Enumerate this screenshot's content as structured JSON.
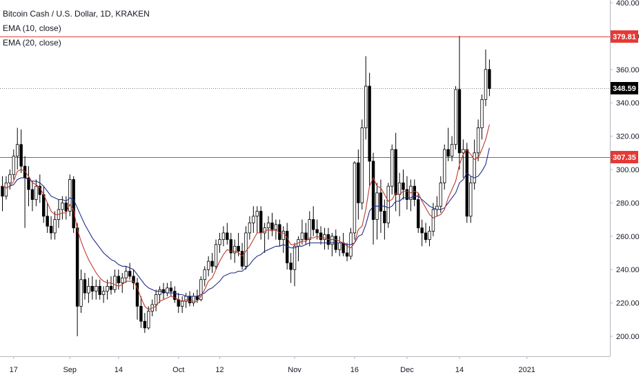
{
  "legend": {
    "symbol": "Bitcoin Cash / U.S. Dollar, 1D, KRAKEN",
    "ema_short": "EMA (10, close)",
    "ema_long": "EMA (20, close)"
  },
  "colors": {
    "bull_fill": "#ffffff",
    "bear_fill": "#000000",
    "wick": "#000000",
    "ema_short": "#c0392b",
    "ema_long": "#1f2a8c",
    "level_line": "#e53935",
    "price_tag": "#000000",
    "level_tag": "#e53935"
  },
  "chart_data": {
    "type": "candlestick",
    "title": "Bitcoin Cash / U.S. Dollar, 1D, KRAKEN",
    "ylim": [
      185,
      405
    ],
    "y_ticks": [
      200,
      220,
      240,
      260,
      280,
      300,
      320,
      340,
      360,
      380,
      400
    ],
    "y_tick_labels": [
      "200.00",
      "220.00",
      "240.00",
      "260.00",
      "280.00",
      "300.00",
      "320.00",
      "340.00",
      "360.00",
      "380.00",
      "400.00"
    ],
    "x_ticks": [
      {
        "index": 3,
        "label": "17"
      },
      {
        "index": 18,
        "label": "Sep"
      },
      {
        "index": 31,
        "label": "14"
      },
      {
        "index": 47,
        "label": "Oct"
      },
      {
        "index": 58,
        "label": "12"
      },
      {
        "index": 78,
        "label": "Nov"
      },
      {
        "index": 94,
        "label": "16"
      },
      {
        "index": 108,
        "label": "Dec"
      },
      {
        "index": 122,
        "label": "14"
      },
      {
        "index": 140,
        "label": "2021"
      }
    ],
    "candles": [
      {
        "o": 290,
        "h": 296,
        "l": 275,
        "c": 284
      },
      {
        "o": 284,
        "h": 296,
        "l": 282,
        "c": 292
      },
      {
        "o": 292,
        "h": 300,
        "l": 288,
        "c": 297
      },
      {
        "o": 297,
        "h": 312,
        "l": 294,
        "c": 308
      },
      {
        "o": 308,
        "h": 325,
        "l": 300,
        "c": 315
      },
      {
        "o": 315,
        "h": 324,
        "l": 298,
        "c": 302
      },
      {
        "o": 302,
        "h": 308,
        "l": 265,
        "c": 295
      },
      {
        "o": 295,
        "h": 302,
        "l": 278,
        "c": 288
      },
      {
        "o": 288,
        "h": 293,
        "l": 275,
        "c": 282
      },
      {
        "o": 282,
        "h": 294,
        "l": 278,
        "c": 290
      },
      {
        "o": 290,
        "h": 297,
        "l": 280,
        "c": 285
      },
      {
        "o": 285,
        "h": 290,
        "l": 268,
        "c": 272
      },
      {
        "o": 272,
        "h": 280,
        "l": 262,
        "c": 266
      },
      {
        "o": 266,
        "h": 272,
        "l": 258,
        "c": 262
      },
      {
        "o": 262,
        "h": 275,
        "l": 258,
        "c": 270
      },
      {
        "o": 270,
        "h": 282,
        "l": 265,
        "c": 276
      },
      {
        "o": 276,
        "h": 284,
        "l": 270,
        "c": 280
      },
      {
        "o": 280,
        "h": 284,
        "l": 270,
        "c": 275
      },
      {
        "o": 275,
        "h": 297,
        "l": 272,
        "c": 294
      },
      {
        "o": 294,
        "h": 296,
        "l": 262,
        "c": 265
      },
      {
        "o": 265,
        "h": 268,
        "l": 200,
        "c": 218
      },
      {
        "o": 218,
        "h": 240,
        "l": 214,
        "c": 234
      },
      {
        "o": 234,
        "h": 238,
        "l": 222,
        "c": 226
      },
      {
        "o": 226,
        "h": 235,
        "l": 220,
        "c": 230
      },
      {
        "o": 230,
        "h": 236,
        "l": 222,
        "c": 227
      },
      {
        "o": 227,
        "h": 234,
        "l": 222,
        "c": 230
      },
      {
        "o": 230,
        "h": 234,
        "l": 222,
        "c": 225
      },
      {
        "o": 225,
        "h": 230,
        "l": 220,
        "c": 227
      },
      {
        "o": 227,
        "h": 234,
        "l": 222,
        "c": 230
      },
      {
        "o": 230,
        "h": 236,
        "l": 225,
        "c": 228
      },
      {
        "o": 228,
        "h": 240,
        "l": 226,
        "c": 236
      },
      {
        "o": 236,
        "h": 240,
        "l": 228,
        "c": 232
      },
      {
        "o": 232,
        "h": 238,
        "l": 226,
        "c": 235
      },
      {
        "o": 235,
        "h": 242,
        "l": 232,
        "c": 239
      },
      {
        "o": 239,
        "h": 244,
        "l": 234,
        "c": 236
      },
      {
        "o": 236,
        "h": 240,
        "l": 228,
        "c": 232
      },
      {
        "o": 232,
        "h": 235,
        "l": 210,
        "c": 218
      },
      {
        "o": 218,
        "h": 224,
        "l": 205,
        "c": 209
      },
      {
        "o": 209,
        "h": 214,
        "l": 202,
        "c": 205
      },
      {
        "o": 205,
        "h": 218,
        "l": 204,
        "c": 215
      },
      {
        "o": 215,
        "h": 222,
        "l": 212,
        "c": 219
      },
      {
        "o": 219,
        "h": 228,
        "l": 215,
        "c": 225
      },
      {
        "o": 225,
        "h": 230,
        "l": 220,
        "c": 228
      },
      {
        "o": 228,
        "h": 232,
        "l": 222,
        "c": 226
      },
      {
        "o": 226,
        "h": 232,
        "l": 224,
        "c": 229
      },
      {
        "o": 229,
        "h": 233,
        "l": 224,
        "c": 227
      },
      {
        "o": 227,
        "h": 230,
        "l": 220,
        "c": 222
      },
      {
        "o": 222,
        "h": 226,
        "l": 214,
        "c": 218
      },
      {
        "o": 218,
        "h": 224,
        "l": 214,
        "c": 221
      },
      {
        "o": 221,
        "h": 226,
        "l": 217,
        "c": 224
      },
      {
        "o": 224,
        "h": 227,
        "l": 218,
        "c": 220
      },
      {
        "o": 220,
        "h": 226,
        "l": 218,
        "c": 224
      },
      {
        "o": 224,
        "h": 228,
        "l": 220,
        "c": 222
      },
      {
        "o": 222,
        "h": 236,
        "l": 221,
        "c": 234
      },
      {
        "o": 234,
        "h": 242,
        "l": 230,
        "c": 240
      },
      {
        "o": 240,
        "h": 248,
        "l": 236,
        "c": 245
      },
      {
        "o": 245,
        "h": 250,
        "l": 238,
        "c": 242
      },
      {
        "o": 242,
        "h": 258,
        "l": 240,
        "c": 255
      },
      {
        "o": 255,
        "h": 262,
        "l": 250,
        "c": 258
      },
      {
        "o": 258,
        "h": 266,
        "l": 254,
        "c": 262
      },
      {
        "o": 262,
        "h": 268,
        "l": 255,
        "c": 258
      },
      {
        "o": 258,
        "h": 262,
        "l": 246,
        "c": 250
      },
      {
        "o": 250,
        "h": 258,
        "l": 244,
        "c": 254
      },
      {
        "o": 254,
        "h": 262,
        "l": 248,
        "c": 251
      },
      {
        "o": 251,
        "h": 256,
        "l": 240,
        "c": 242
      },
      {
        "o": 242,
        "h": 266,
        "l": 240,
        "c": 262
      },
      {
        "o": 262,
        "h": 272,
        "l": 258,
        "c": 268
      },
      {
        "o": 268,
        "h": 278,
        "l": 262,
        "c": 272
      },
      {
        "o": 272,
        "h": 278,
        "l": 262,
        "c": 275
      },
      {
        "o": 275,
        "h": 278,
        "l": 258,
        "c": 262
      },
      {
        "o": 262,
        "h": 268,
        "l": 250,
        "c": 265
      },
      {
        "o": 265,
        "h": 272,
        "l": 258,
        "c": 268
      },
      {
        "o": 268,
        "h": 274,
        "l": 260,
        "c": 264
      },
      {
        "o": 264,
        "h": 270,
        "l": 258,
        "c": 267
      },
      {
        "o": 267,
        "h": 270,
        "l": 254,
        "c": 258
      },
      {
        "o": 258,
        "h": 266,
        "l": 250,
        "c": 263
      },
      {
        "o": 263,
        "h": 268,
        "l": 240,
        "c": 244
      },
      {
        "o": 244,
        "h": 250,
        "l": 232,
        "c": 240
      },
      {
        "o": 240,
        "h": 256,
        "l": 230,
        "c": 254
      },
      {
        "o": 254,
        "h": 260,
        "l": 245,
        "c": 258
      },
      {
        "o": 258,
        "h": 270,
        "l": 255,
        "c": 262
      },
      {
        "o": 262,
        "h": 268,
        "l": 255,
        "c": 258
      },
      {
        "o": 258,
        "h": 275,
        "l": 254,
        "c": 270
      },
      {
        "o": 270,
        "h": 278,
        "l": 260,
        "c": 264
      },
      {
        "o": 264,
        "h": 270,
        "l": 258,
        "c": 262
      },
      {
        "o": 262,
        "h": 266,
        "l": 255,
        "c": 258
      },
      {
        "o": 258,
        "h": 265,
        "l": 252,
        "c": 261
      },
      {
        "o": 261,
        "h": 265,
        "l": 252,
        "c": 255
      },
      {
        "o": 255,
        "h": 262,
        "l": 248,
        "c": 260
      },
      {
        "o": 260,
        "h": 264,
        "l": 250,
        "c": 252
      },
      {
        "o": 252,
        "h": 260,
        "l": 248,
        "c": 256
      },
      {
        "o": 256,
        "h": 262,
        "l": 248,
        "c": 250
      },
      {
        "o": 250,
        "h": 256,
        "l": 245,
        "c": 248
      },
      {
        "o": 248,
        "h": 265,
        "l": 246,
        "c": 262
      },
      {
        "o": 262,
        "h": 305,
        "l": 258,
        "c": 304
      },
      {
        "o": 304,
        "h": 312,
        "l": 270,
        "c": 280
      },
      {
        "o": 280,
        "h": 330,
        "l": 276,
        "c": 325
      },
      {
        "o": 325,
        "h": 368,
        "l": 318,
        "c": 350
      },
      {
        "o": 350,
        "h": 358,
        "l": 290,
        "c": 305
      },
      {
        "o": 305,
        "h": 310,
        "l": 255,
        "c": 270
      },
      {
        "o": 270,
        "h": 292,
        "l": 258,
        "c": 286
      },
      {
        "o": 286,
        "h": 294,
        "l": 262,
        "c": 275
      },
      {
        "o": 275,
        "h": 282,
        "l": 258,
        "c": 268
      },
      {
        "o": 268,
        "h": 292,
        "l": 265,
        "c": 290
      },
      {
        "o": 290,
        "h": 315,
        "l": 285,
        "c": 312
      },
      {
        "o": 312,
        "h": 322,
        "l": 275,
        "c": 285
      },
      {
        "o": 285,
        "h": 298,
        "l": 272,
        "c": 292
      },
      {
        "o": 292,
        "h": 300,
        "l": 282,
        "c": 288
      },
      {
        "o": 288,
        "h": 296,
        "l": 276,
        "c": 282
      },
      {
        "o": 282,
        "h": 294,
        "l": 275,
        "c": 290
      },
      {
        "o": 290,
        "h": 294,
        "l": 278,
        "c": 282
      },
      {
        "o": 282,
        "h": 286,
        "l": 262,
        "c": 265
      },
      {
        "o": 265,
        "h": 270,
        "l": 254,
        "c": 262
      },
      {
        "o": 262,
        "h": 268,
        "l": 256,
        "c": 258
      },
      {
        "o": 258,
        "h": 266,
        "l": 254,
        "c": 263
      },
      {
        "o": 263,
        "h": 280,
        "l": 260,
        "c": 276
      },
      {
        "o": 276,
        "h": 284,
        "l": 272,
        "c": 278
      },
      {
        "o": 278,
        "h": 296,
        "l": 274,
        "c": 292
      },
      {
        "o": 292,
        "h": 315,
        "l": 288,
        "c": 312
      },
      {
        "o": 312,
        "h": 325,
        "l": 305,
        "c": 308
      },
      {
        "o": 308,
        "h": 320,
        "l": 305,
        "c": 315
      },
      {
        "o": 315,
        "h": 350,
        "l": 312,
        "c": 348
      },
      {
        "o": 348,
        "h": 380,
        "l": 300,
        "c": 310
      },
      {
        "o": 310,
        "h": 318,
        "l": 295,
        "c": 312
      },
      {
        "o": 312,
        "h": 316,
        "l": 268,
        "c": 272
      },
      {
        "o": 272,
        "h": 296,
        "l": 268,
        "c": 292
      },
      {
        "o": 292,
        "h": 318,
        "l": 288,
        "c": 310
      },
      {
        "o": 310,
        "h": 330,
        "l": 305,
        "c": 325
      },
      {
        "o": 325,
        "h": 345,
        "l": 318,
        "c": 342
      },
      {
        "o": 342,
        "h": 372,
        "l": 338,
        "c": 360
      },
      {
        "o": 360,
        "h": 366,
        "l": 344,
        "c": 348.59
      }
    ],
    "ema_short": {
      "name": "EMA (10, close)",
      "values": [
        290,
        289,
        290,
        293,
        299,
        300,
        299,
        296,
        292,
        291,
        289,
        285,
        280,
        275,
        273,
        273,
        274,
        274,
        279,
        276,
        264,
        257,
        251,
        246,
        242,
        238,
        235,
        233,
        232,
        232,
        231,
        230,
        231,
        233,
        233,
        233,
        229,
        223,
        218,
        216,
        217,
        218,
        221,
        222,
        223,
        224,
        223,
        222,
        221,
        222,
        221,
        221,
        221,
        224,
        228,
        233,
        235,
        240,
        245,
        249,
        252,
        251,
        251,
        250,
        248,
        251,
        254,
        258,
        262,
        262,
        263,
        264,
        263,
        264,
        262,
        262,
        259,
        255,
        255,
        256,
        257,
        257,
        259,
        259,
        260,
        259,
        259,
        258,
        258,
        258,
        257,
        256,
        254,
        253,
        256,
        264,
        266,
        276,
        290,
        295,
        290,
        289,
        285,
        281,
        282,
        286,
        285,
        287,
        287,
        286,
        287,
        286,
        281,
        277,
        273,
        271,
        272,
        273,
        276,
        283,
        288,
        293,
        303,
        309,
        312,
        309,
        306,
        307,
        312,
        318,
        327
      ]
    },
    "ema_long": {
      "name": "EMA (20, close)",
      "values": [
        290,
        289,
        290,
        291,
        294,
        295,
        295,
        294,
        293,
        293,
        292,
        290,
        287,
        284,
        283,
        282,
        282,
        281,
        283,
        282,
        277,
        272,
        267,
        263,
        259,
        256,
        253,
        250,
        248,
        246,
        245,
        243,
        242,
        242,
        241,
        240,
        237,
        234,
        231,
        229,
        228,
        227,
        227,
        227,
        226,
        226,
        226,
        225,
        225,
        224,
        224,
        224,
        224,
        225,
        226,
        228,
        229,
        231,
        233,
        236,
        237,
        238,
        238,
        239,
        239,
        241,
        243,
        246,
        248,
        249,
        251,
        252,
        253,
        254,
        254,
        255,
        254,
        253,
        253,
        254,
        254,
        255,
        256,
        256,
        256,
        256,
        256,
        256,
        256,
        256,
        256,
        256,
        255,
        255,
        256,
        260,
        261,
        267,
        275,
        278,
        278,
        278,
        278,
        277,
        278,
        281,
        281,
        283,
        283,
        283,
        284,
        284,
        282,
        280,
        278,
        277,
        276,
        276,
        277,
        280,
        283,
        286,
        292,
        294,
        298,
        296,
        295,
        296,
        299,
        303,
        313
      ]
    },
    "levels": [
      {
        "value": 379.81,
        "label": "379.81"
      },
      {
        "value": 307.35,
        "label": "307.35"
      }
    ],
    "last_price": {
      "value": 348.59,
      "label": "348.59"
    }
  }
}
